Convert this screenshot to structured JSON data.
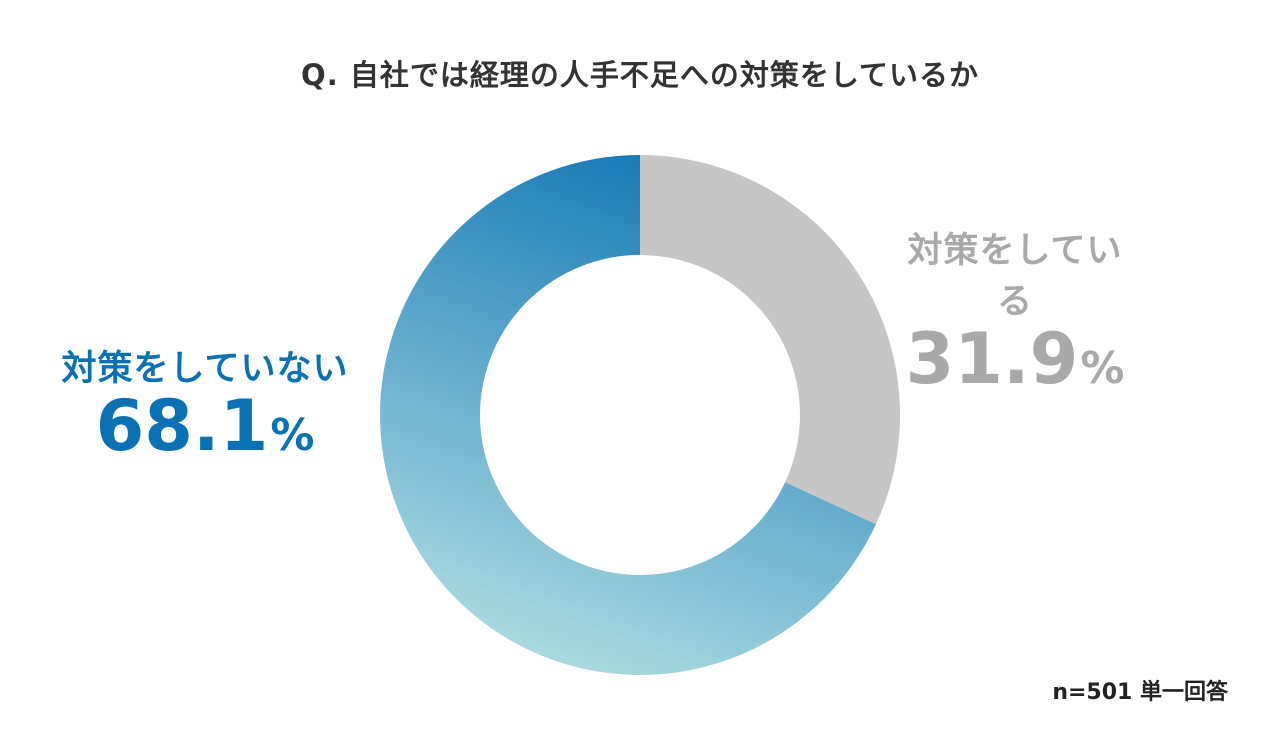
{
  "chart_data": {
    "type": "pie",
    "variant": "donut",
    "title": "Q. 自社では経理の人手不足への対策をしているか",
    "categories": [
      "対策をしていない",
      "対策をしている"
    ],
    "values": [
      68.1,
      31.9
    ],
    "unit": "%",
    "colors": [
      "#0a72b4",
      "#c6c6c6"
    ],
    "gradient_end_color": "#a9d9e0",
    "label_colors": [
      "#0a72b4",
      "#a9a9a9"
    ],
    "note": "n=501 単一回答"
  },
  "labels": {
    "left": {
      "name": "対策をしていない",
      "value": "68.1",
      "unit": "%"
    },
    "right": {
      "name": "対策をしている",
      "value": "31.9",
      "unit": "%"
    }
  }
}
